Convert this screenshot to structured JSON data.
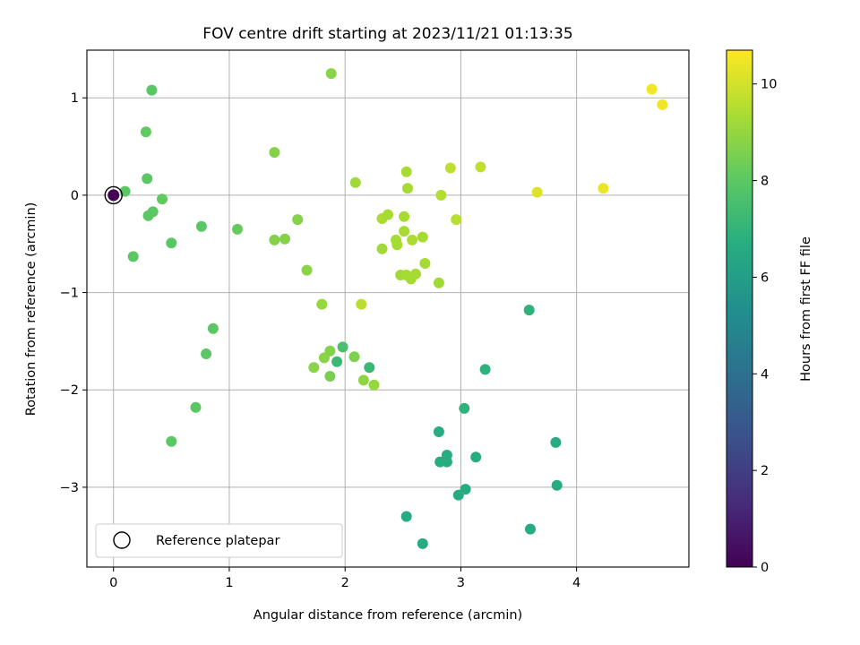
{
  "chart_data": {
    "type": "scatter",
    "title": "FOV centre drift starting at 2023/11/21 01:13:35",
    "xlabel": "Angular distance from reference (arcmin)",
    "ylabel": "Rotation from reference (arcmin)",
    "xlim": [
      -0.23,
      4.97
    ],
    "ylim": [
      -3.82,
      1.49
    ],
    "x_ticks": [
      {
        "v": 0,
        "label": "0"
      },
      {
        "v": 1,
        "label": "1"
      },
      {
        "v": 2,
        "label": "2"
      },
      {
        "v": 3,
        "label": "3"
      },
      {
        "v": 4,
        "label": "4"
      }
    ],
    "y_ticks": [
      {
        "v": 1,
        "label": "1"
      },
      {
        "v": 0,
        "label": "0"
      },
      {
        "v": -1,
        "label": "−1"
      },
      {
        "v": -2,
        "label": "−2"
      },
      {
        "v": -3,
        "label": "−3"
      }
    ],
    "grid": true,
    "colormap": "viridis",
    "colorbar": {
      "label": "Hours from first FF file",
      "range": [
        0,
        10.7
      ],
      "ticks": [
        {
          "v": 0,
          "label": "0"
        },
        {
          "v": 2,
          "label": "2"
        },
        {
          "v": 4,
          "label": "4"
        },
        {
          "v": 6,
          "label": "6"
        },
        {
          "v": 8,
          "label": "8"
        },
        {
          "v": 10,
          "label": "10"
        }
      ]
    },
    "legend": {
      "position": "lower-left",
      "label": "Reference platepar"
    },
    "reference_point": {
      "x": 0,
      "y": 0,
      "hours": 0
    },
    "points": [
      {
        "x": 0.1,
        "y": 0.04,
        "hours": 8.0
      },
      {
        "x": 0.33,
        "y": 1.08,
        "hours": 8.0
      },
      {
        "x": 0.28,
        "y": 0.65,
        "hours": 8.1
      },
      {
        "x": 0.29,
        "y": 0.17,
        "hours": 8.0
      },
      {
        "x": 0.34,
        "y": -0.17,
        "hours": 8.0
      },
      {
        "x": 0.3,
        "y": -0.21,
        "hours": 8.0
      },
      {
        "x": 0.42,
        "y": -0.04,
        "hours": 8.1
      },
      {
        "x": 0.17,
        "y": -0.63,
        "hours": 8.0
      },
      {
        "x": 0.5,
        "y": -0.49,
        "hours": 8.0
      },
      {
        "x": 0.76,
        "y": -0.32,
        "hours": 8.0
      },
      {
        "x": 0.86,
        "y": -1.37,
        "hours": 8.0
      },
      {
        "x": 0.8,
        "y": -1.63,
        "hours": 8.0
      },
      {
        "x": 0.71,
        "y": -2.18,
        "hours": 8.0
      },
      {
        "x": 0.5,
        "y": -2.53,
        "hours": 8.0
      },
      {
        "x": 1.07,
        "y": -0.35,
        "hours": 8.2
      },
      {
        "x": 1.39,
        "y": 0.44,
        "hours": 8.7
      },
      {
        "x": 1.39,
        "y": -0.46,
        "hours": 8.7
      },
      {
        "x": 1.48,
        "y": -0.45,
        "hours": 8.7
      },
      {
        "x": 1.59,
        "y": -0.25,
        "hours": 8.7
      },
      {
        "x": 1.67,
        "y": -0.77,
        "hours": 8.8
      },
      {
        "x": 1.88,
        "y": 1.25,
        "hours": 8.8
      },
      {
        "x": 1.8,
        "y": -1.12,
        "hours": 9.0
      },
      {
        "x": 2.09,
        "y": 0.13,
        "hours": 9.2
      },
      {
        "x": 2.14,
        "y": -1.12,
        "hours": 9.6
      },
      {
        "x": 1.73,
        "y": -1.77,
        "hours": 8.8
      },
      {
        "x": 1.82,
        "y": -1.67,
        "hours": 8.8
      },
      {
        "x": 1.87,
        "y": -1.6,
        "hours": 8.7
      },
      {
        "x": 1.87,
        "y": -1.86,
        "hours": 8.5
      },
      {
        "x": 1.93,
        "y": -1.71,
        "hours": 7.2
      },
      {
        "x": 1.98,
        "y": -1.56,
        "hours": 7.6
      },
      {
        "x": 2.08,
        "y": -1.66,
        "hours": 8.6
      },
      {
        "x": 2.16,
        "y": -1.9,
        "hours": 8.9
      },
      {
        "x": 2.21,
        "y": -1.77,
        "hours": 7.2
      },
      {
        "x": 2.25,
        "y": -1.95,
        "hours": 9.0
      },
      {
        "x": 2.32,
        "y": -0.24,
        "hours": 9.4
      },
      {
        "x": 2.37,
        "y": -0.2,
        "hours": 9.3
      },
      {
        "x": 2.32,
        "y": -0.55,
        "hours": 9.2
      },
      {
        "x": 2.44,
        "y": -0.46,
        "hours": 9.3
      },
      {
        "x": 2.45,
        "y": -0.51,
        "hours": 9.3
      },
      {
        "x": 2.51,
        "y": -0.37,
        "hours": 9.3
      },
      {
        "x": 2.51,
        "y": -0.22,
        "hours": 9.3
      },
      {
        "x": 2.53,
        "y": 0.24,
        "hours": 9.3
      },
      {
        "x": 2.54,
        "y": 0.07,
        "hours": 9.3
      },
      {
        "x": 2.58,
        "y": -0.46,
        "hours": 9.4
      },
      {
        "x": 2.67,
        "y": -0.43,
        "hours": 9.3
      },
      {
        "x": 2.48,
        "y": -0.82,
        "hours": 9.2
      },
      {
        "x": 2.53,
        "y": -0.82,
        "hours": 9.3
      },
      {
        "x": 2.57,
        "y": -0.86,
        "hours": 9.3
      },
      {
        "x": 2.61,
        "y": -0.81,
        "hours": 9.3
      },
      {
        "x": 2.69,
        "y": -0.7,
        "hours": 9.3
      },
      {
        "x": 2.81,
        "y": -0.9,
        "hours": 9.2
      },
      {
        "x": 2.83,
        "y": 0.0,
        "hours": 9.5
      },
      {
        "x": 2.91,
        "y": 0.28,
        "hours": 9.7
      },
      {
        "x": 2.96,
        "y": -0.25,
        "hours": 9.6
      },
      {
        "x": 3.17,
        "y": 0.29,
        "hours": 9.7
      },
      {
        "x": 3.66,
        "y": 0.03,
        "hours": 10.2
      },
      {
        "x": 4.23,
        "y": 0.07,
        "hours": 10.4
      },
      {
        "x": 4.65,
        "y": 1.09,
        "hours": 10.5
      },
      {
        "x": 4.74,
        "y": 0.93,
        "hours": 10.5
      },
      {
        "x": 3.59,
        "y": -1.18,
        "hours": 6.9
      },
      {
        "x": 3.21,
        "y": -1.79,
        "hours": 6.9
      },
      {
        "x": 3.03,
        "y": -2.19,
        "hours": 6.9
      },
      {
        "x": 2.81,
        "y": -2.43,
        "hours": 6.7
      },
      {
        "x": 2.88,
        "y": -2.67,
        "hours": 6.7
      },
      {
        "x": 2.82,
        "y": -2.74,
        "hours": 6.7
      },
      {
        "x": 2.88,
        "y": -2.74,
        "hours": 6.7
      },
      {
        "x": 3.13,
        "y": -2.69,
        "hours": 6.7
      },
      {
        "x": 3.04,
        "y": -3.02,
        "hours": 6.6
      },
      {
        "x": 2.98,
        "y": -3.08,
        "hours": 6.6
      },
      {
        "x": 2.53,
        "y": -3.3,
        "hours": 6.6
      },
      {
        "x": 2.67,
        "y": -3.58,
        "hours": 6.6
      },
      {
        "x": 3.6,
        "y": -3.43,
        "hours": 6.6
      },
      {
        "x": 3.82,
        "y": -2.54,
        "hours": 6.6
      },
      {
        "x": 3.83,
        "y": -2.98,
        "hours": 6.6
      }
    ]
  }
}
